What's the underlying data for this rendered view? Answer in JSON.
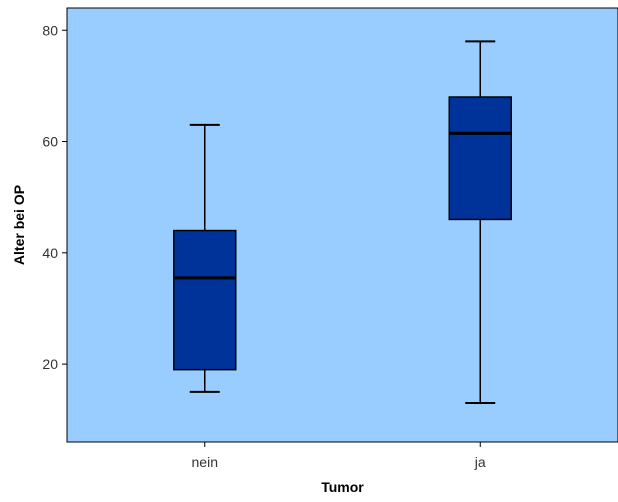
{
  "chart_data": {
    "type": "boxplot",
    "xlabel": "Tumor",
    "ylabel": "Alter bei OP",
    "categories": [
      "nein",
      "ja"
    ],
    "boxes": [
      {
        "category": "nein",
        "min": 15,
        "q1": 19,
        "median": 35.5,
        "q3": 44,
        "max": 63
      },
      {
        "category": "ja",
        "min": 13,
        "q1": 46,
        "median": 61.5,
        "q3": 68,
        "max": 78
      }
    ],
    "ylim": [
      6,
      84
    ],
    "yticks": [
      20,
      40,
      60,
      80
    ],
    "grid": false,
    "legend": "none",
    "colors": {
      "plot_background": "#99ccff",
      "box_fill": "#003399",
      "line": "#000000",
      "text": "#000000",
      "tick_text": "#333333"
    }
  }
}
